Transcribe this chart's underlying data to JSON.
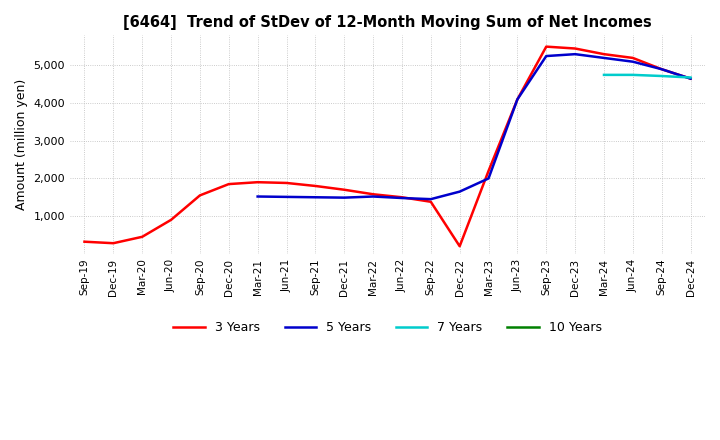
{
  "title": "[6464]  Trend of StDev of 12-Month Moving Sum of Net Incomes",
  "ylabel": "Amount (million yen)",
  "line_colors": {
    "3y": "#ff0000",
    "5y": "#0000cc",
    "7y": "#00cccc",
    "10y": "#008000"
  },
  "legend_labels": {
    "3y": "3 Years",
    "5y": "5 Years",
    "7y": "7 Years",
    "10y": "10 Years"
  },
  "x_labels": [
    "Sep-19",
    "Dec-19",
    "Mar-20",
    "Jun-20",
    "Sep-20",
    "Dec-20",
    "Mar-21",
    "Jun-21",
    "Sep-21",
    "Dec-21",
    "Mar-22",
    "Jun-22",
    "Sep-22",
    "Dec-22",
    "Mar-23",
    "Jun-23",
    "Sep-23",
    "Dec-23",
    "Mar-24",
    "Jun-24",
    "Sep-24",
    "Dec-24"
  ],
  "data_3y": [
    320,
    280,
    450,
    900,
    1550,
    1850,
    1900,
    1880,
    1800,
    1700,
    1580,
    1500,
    1380,
    200,
    2200,
    4100,
    5500,
    5450,
    5300,
    5200,
    4900,
    4650
  ],
  "data_5y": [
    null,
    null,
    null,
    null,
    null,
    null,
    1520,
    1510,
    1500,
    1490,
    1520,
    1480,
    1450,
    1650,
    2000,
    4100,
    5250,
    5300,
    5200,
    5100,
    4900,
    4650
  ],
  "data_7y": [
    null,
    null,
    null,
    null,
    null,
    null,
    null,
    null,
    null,
    null,
    null,
    null,
    null,
    null,
    null,
    null,
    null,
    null,
    4750,
    4750,
    4720,
    4680
  ],
  "data_10y": [
    null,
    null,
    null,
    null,
    null,
    null,
    null,
    null,
    null,
    null,
    null,
    null,
    null,
    null,
    null,
    null,
    null,
    null,
    null,
    null,
    null,
    null
  ],
  "ylim": [
    0,
    5800
  ],
  "yticks": [
    1000,
    2000,
    3000,
    4000,
    5000
  ],
  "background_color": "#ffffff",
  "grid_color": "#bbbbbb"
}
